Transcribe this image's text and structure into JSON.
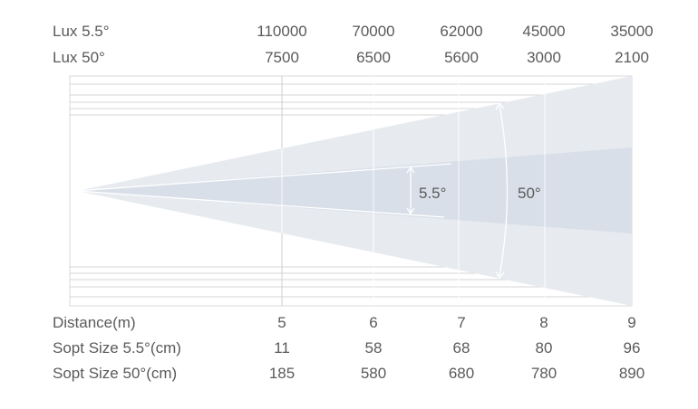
{
  "columns": [
    "5",
    "6",
    "7",
    "8",
    "9"
  ],
  "rows": {
    "lux_narrow": {
      "label": "Lux 5.5°",
      "values": [
        "110000",
        "70000",
        "62000",
        "45000",
        "35000"
      ]
    },
    "lux_wide": {
      "label": "Lux 50°",
      "values": [
        "7500",
        "6500",
        "5600",
        "3000",
        "2100"
      ]
    },
    "distance": {
      "label": "Distance(m)",
      "values": [
        "5",
        "6",
        "7",
        "8",
        "9"
      ]
    },
    "spot_narrow": {
      "label": "Sopt Size 5.5°(cm)",
      "values": [
        "11",
        "58",
        "68",
        "80",
        "96"
      ]
    },
    "spot_wide": {
      "label": "Sopt Size 50°(cm)",
      "values": [
        "185",
        "580",
        "680",
        "780",
        "890"
      ]
    }
  },
  "beam": {
    "narrow_angle_label": "5.5°",
    "wide_angle_label": "50°"
  },
  "colors": {
    "wide_beam": "#e7ebf0",
    "narrow_beam": "#d7dee7",
    "grid": "#d4d4d4",
    "text": "#5a5a5a"
  }
}
